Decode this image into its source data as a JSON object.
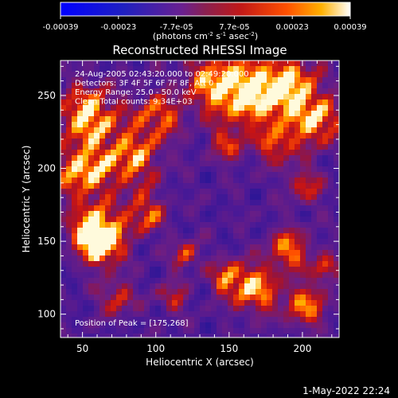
{
  "colorbar": {
    "tick_labels": [
      "-0.00039",
      "-0.00023",
      "-7.7e-05",
      "7.7e-05",
      "0.00023",
      "0.00039"
    ],
    "unit_main": "(photons cm",
    "unit_sup1": "-2",
    "unit_mid": " s",
    "unit_sup2": "-1",
    "unit_end": " asec",
    "unit_sup3": "-2",
    "unit_close": ")"
  },
  "chart_data": {
    "type": "heatmap",
    "title": "Reconstructed RHESSI Image",
    "xlabel": "Heliocentric X (arcsec)",
    "ylabel": "Heliocentric Y (arcsec)",
    "xlim": [
      35,
      225
    ],
    "ylim": [
      84,
      274
    ],
    "x_ticks": [
      50,
      100,
      150,
      200
    ],
    "y_ticks": [
      100,
      150,
      200,
      250
    ],
    "value_range": [
      -0.00039,
      0.00039
    ],
    "colormap": "rainbow-hot",
    "peak": [
      175,
      268
    ],
    "annotations": [
      "24-Aug-2005 02:43:20.000 to 02:49:20.000",
      "Detectors: 3F 4F 5F 6F 7F 8F, Att 0",
      "Energy Range: 25.0 - 50.0 keV",
      "Clean     Total counts: 9.34E+03"
    ],
    "peak_label": "Position of Peak = [175,268]"
  },
  "footer": {
    "date": "1-May-2022 22:24"
  }
}
